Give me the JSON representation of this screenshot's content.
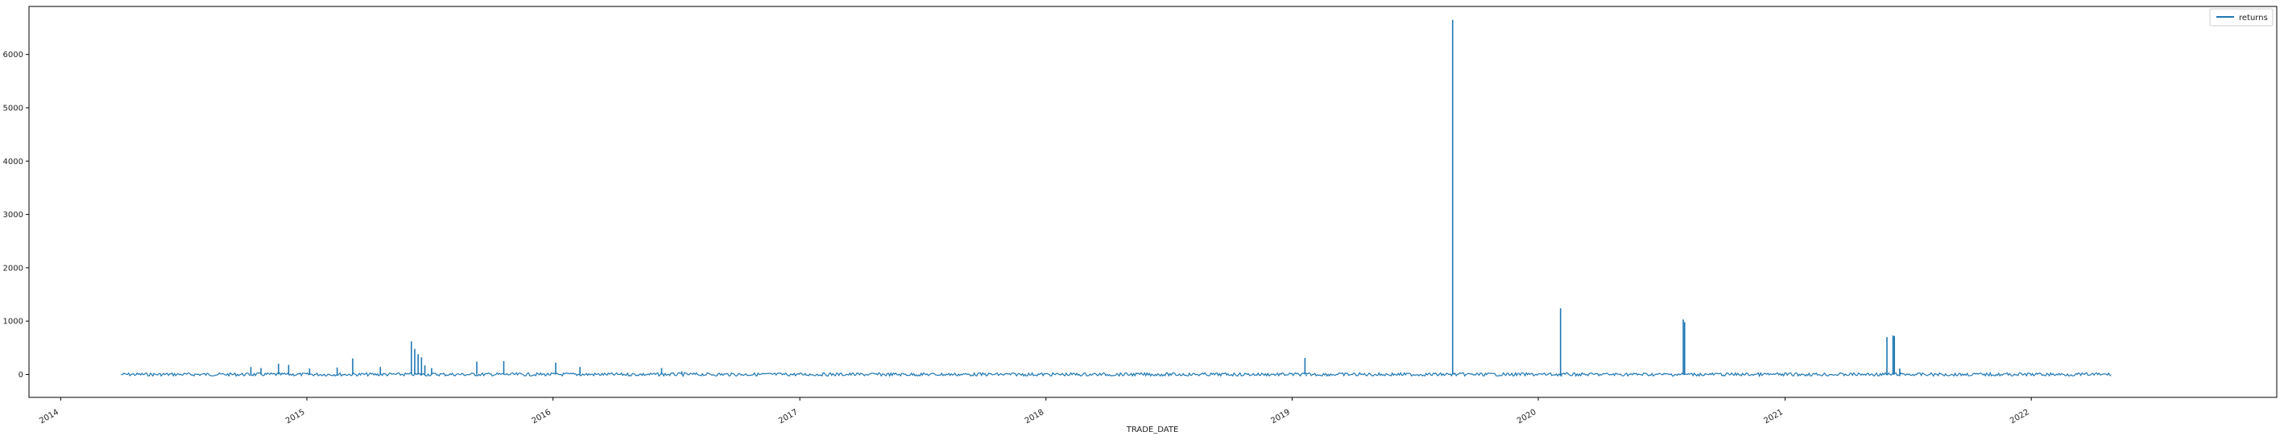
{
  "chart_data": {
    "type": "line",
    "title": "",
    "xlabel": "TRADE_DATE",
    "ylabel": "",
    "grid": false,
    "legend_position": "top-right",
    "color": "#1f77b4",
    "x_ticks": [
      "2014",
      "2015",
      "2016",
      "2017",
      "2018",
      "2019",
      "2020",
      "2021",
      "2022"
    ],
    "y_ticks": [
      0,
      1000,
      2000,
      3000,
      4000,
      5000,
      6000
    ],
    "xlim": [
      "2013-11-15",
      "2022-12-31"
    ],
    "ylim": [
      -430,
      6900
    ],
    "series": [
      {
        "name": "returns",
        "x": [
          "2014-04-01",
          "2014-10-10",
          "2014-10-25",
          "2014-11-20",
          "2014-12-05",
          "2015-01-05",
          "2015-02-15",
          "2015-03-10",
          "2015-04-20",
          "2015-06-05",
          "2015-06-10",
          "2015-06-15",
          "2015-06-20",
          "2015-06-25",
          "2015-07-05",
          "2015-09-10",
          "2015-10-20",
          "2016-01-05",
          "2016-02-10",
          "2016-06-10",
          "2016-07-10",
          "2019-01-20",
          "2019-01-22",
          "2019-08-27",
          "2019-08-28",
          "2019-08-29",
          "2020-02-03",
          "2020-02-04",
          "2020-08-03",
          "2020-08-05",
          "2021-06-01",
          "2021-06-10",
          "2021-06-12",
          "2021-06-20",
          "2022-04-30"
        ],
        "values": [
          5,
          140,
          120,
          200,
          180,
          110,
          130,
          300,
          140,
          620,
          480,
          380,
          320,
          170,
          120,
          240,
          250,
          220,
          140,
          120,
          60,
          310,
          -30,
          6650,
          30,
          10,
          1240,
          -40,
          1030,
          980,
          700,
          730,
          720,
          110,
          5
        ]
      }
    ]
  }
}
